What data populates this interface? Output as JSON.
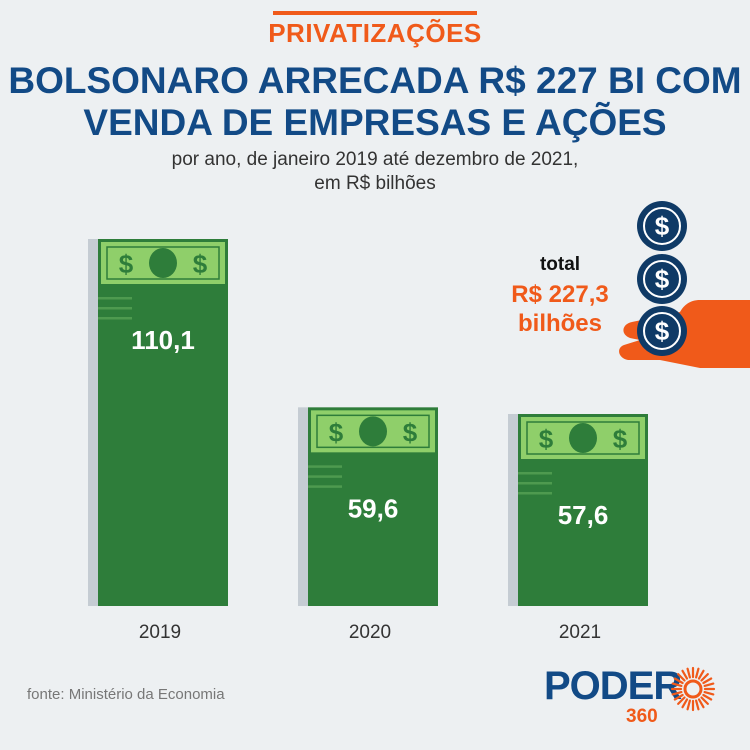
{
  "header": {
    "kicker": "PRIVATIZAÇÕES",
    "title_line1": "BOLSONARO ARRECADA R$ 227 BI COM",
    "title_line2": "VENDA DE EMPRESAS E AÇÕES",
    "subtitle_line1": "por ano, de janeiro 2019 até dezembro de 2021,",
    "subtitle_line2": "em R$ bilhões"
  },
  "total": {
    "label": "total",
    "value_line1": "R$ 227,3",
    "value_line2": "bilhões",
    "coin_symbol": "$"
  },
  "bill_symbol": "$",
  "source": "fonte: Ministério da Economia",
  "logo": {
    "word": "PODER",
    "number": "360"
  },
  "colors": {
    "background": "#edf0f2",
    "accent_orange": "#f05a1a",
    "title_blue": "#124a86",
    "bar_green": "#2e7d3a",
    "bill_light_green": "#8fcf6a",
    "coin_navy": "#0f3a66",
    "shadow_grey": "#c5ccd3"
  },
  "chart_data": {
    "type": "bar",
    "categories": [
      "2019",
      "2020",
      "2021"
    ],
    "values": [
      110.1,
      59.6,
      57.6
    ],
    "value_labels": [
      "110,1",
      "59,6",
      "57,6"
    ],
    "ylim": [
      0,
      110.1
    ],
    "grid": false,
    "legend": "none"
  }
}
